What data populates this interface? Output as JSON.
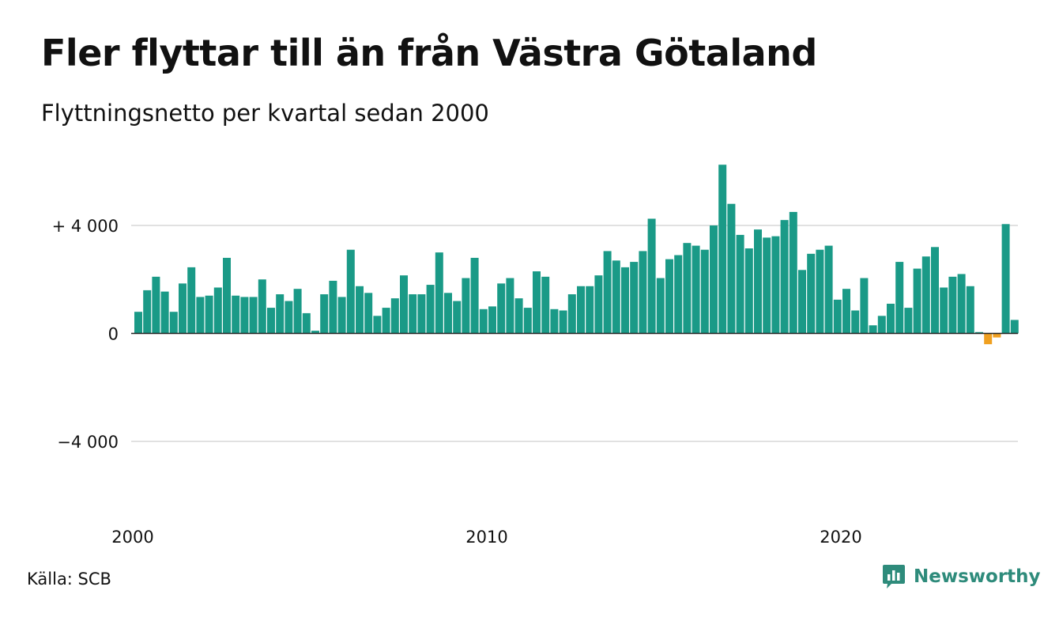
{
  "title": "Fler flyttar till än från Västra Götaland",
  "subtitle": "Flyttningsnetto per kvartal sedan 2000",
  "source": "Källa: SCB",
  "brand": {
    "name": "Newsworthy",
    "icon": "newsworthy-logo-icon",
    "color": "#2e8b7b"
  },
  "colors": {
    "positive": "#1a9a87",
    "negative": "#f0a020",
    "grid": "#e1e1e1",
    "zero_line": "#222222"
  },
  "chart_data": {
    "type": "bar",
    "title": "Fler flyttar till än från Västra Götaland",
    "subtitle": "Flyttningsnetto per kvartal sedan 2000",
    "xlabel": "",
    "ylabel": "",
    "ylim": [
      -6500,
      6500
    ],
    "yticks": [
      4000,
      0,
      -4000
    ],
    "ytick_labels": [
      "+ 4 000",
      "0",
      "−4 000"
    ],
    "xticks": [
      2000,
      2010,
      2020
    ],
    "xtick_labels": [
      "2000",
      "2010",
      "2020"
    ],
    "x_start": 2000,
    "periods_per_year": 4,
    "grid": true,
    "values": [
      800,
      1600,
      2100,
      1550,
      800,
      1850,
      2450,
      1350,
      1400,
      1700,
      2800,
      1400,
      1350,
      1350,
      2000,
      950,
      1450,
      1200,
      1650,
      750,
      100,
      1450,
      1950,
      1350,
      3100,
      1750,
      1500,
      650,
      950,
      1300,
      2150,
      1450,
      1450,
      1800,
      3000,
      1500,
      1200,
      2050,
      2800,
      900,
      1000,
      1850,
      2050,
      1300,
      950,
      2300,
      2100,
      900,
      850,
      1450,
      1750,
      1750,
      2150,
      3050,
      2700,
      2450,
      2650,
      3050,
      4250,
      2050,
      2750,
      2900,
      3350,
      3250,
      3100,
      4000,
      6250,
      4800,
      3650,
      3150,
      3850,
      3550,
      3600,
      4200,
      4500,
      2350,
      2950,
      3100,
      3250,
      1250,
      1650,
      850,
      2050,
      300,
      650,
      1100,
      2650,
      950,
      2400,
      2850,
      3200,
      1700,
      2100,
      2200,
      1750,
      50,
      -400,
      -150,
      4050,
      500
    ]
  }
}
